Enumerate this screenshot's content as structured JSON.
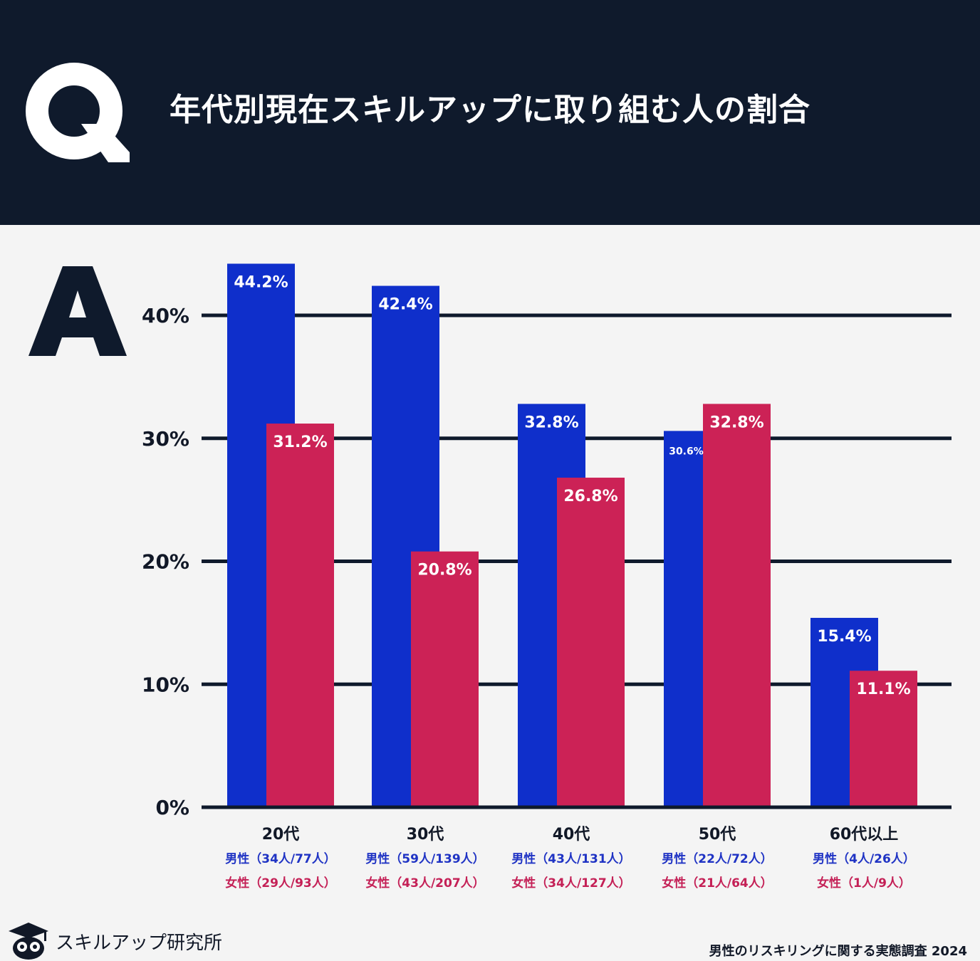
{
  "header": {
    "q_label": "Q",
    "title": "年代別現在スキルアップに取り組む人の割合",
    "background": "#0f1a2c"
  },
  "answer_label": "A",
  "colors": {
    "male": "#0f2fcb",
    "female": "#cc2256",
    "grid": "#0f1a2c",
    "background": "#f4f4f4"
  },
  "chart_data": {
    "type": "bar",
    "title": "年代別現在スキルアップに取り組む人の割合",
    "categories": [
      "20代",
      "30代",
      "40代",
      "50代",
      "60代以上"
    ],
    "series": [
      {
        "values": [
          44.2,
          42.4,
          32.8,
          30.6,
          15.4
        ],
        "color": "#0f2fcb"
      },
      {
        "values": [
          31.2,
          20.8,
          26.8,
          32.8,
          11.1
        ],
        "color": "#cc2256"
      }
    ],
    "data_labels": [
      [
        "44.2%",
        "42.4%",
        "32.8%",
        "30.6%",
        "15.4%"
      ],
      [
        "31.2%",
        "20.8%",
        "26.8%",
        "32.8%",
        "11.1%"
      ]
    ],
    "y_ticks": [
      "0%",
      "10%",
      "20%",
      "30%",
      "40%"
    ],
    "ylim": [
      0,
      46
    ],
    "grid": true,
    "legend": "none",
    "group_details": {
      "male": [
        "男性（34人/77人）",
        "男性（59人/139人）",
        "男性（43人/131人）",
        "男性（22人/72人）",
        "男性（4人/26人）"
      ],
      "female": [
        "女性（29人/93人）",
        "女性（43人/207人）",
        "女性（34人/127人）",
        "女性（21人/64人）",
        "女性（1人/9人）"
      ]
    }
  },
  "footer": {
    "logo_text": "スキルアップ研究所",
    "logo_icon": "owl-graduate-icon",
    "source": "男性のリスキリングに関する実態調査 2024"
  }
}
